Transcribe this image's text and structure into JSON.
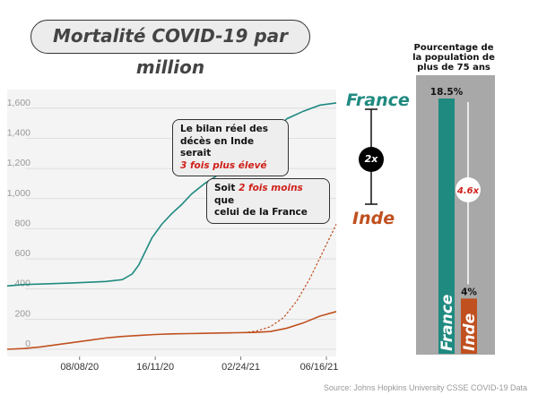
{
  "title": "Mortalité COVID-19 par million",
  "source": "Source: Johns Hopkins University CSSE COVID-19 Data",
  "colors": {
    "france": "#1f8a80",
    "inde": "#c0501f",
    "red_text": "#d0201b"
  },
  "chart_data": [
    {
      "type": "line",
      "ylim": [
        0,
        1700
      ],
      "yticks": [
        0,
        200,
        400,
        600,
        800,
        1000,
        1200,
        1400,
        1600
      ],
      "ytick_labels": [
        "0",
        "200",
        "400",
        "600",
        "800",
        "1,000",
        "1,200",
        "1,400",
        "1,600"
      ],
      "xticks": [
        {
          "label": "08/08/20",
          "x": 0.22
        },
        {
          "label": "16/11/20",
          "x": 0.45
        },
        {
          "label": "02/24/21",
          "x": 0.71
        },
        {
          "label": "06/16/21",
          "x": 0.97
        }
      ],
      "series": [
        {
          "name": "France",
          "points": [
            [
              0.0,
              420
            ],
            [
              0.05,
              430
            ],
            [
              0.1,
              433
            ],
            [
              0.2,
              440
            ],
            [
              0.3,
              450
            ],
            [
              0.35,
              462
            ],
            [
              0.38,
              500
            ],
            [
              0.4,
              560
            ],
            [
              0.42,
              650
            ],
            [
              0.44,
              740
            ],
            [
              0.47,
              830
            ],
            [
              0.5,
              900
            ],
            [
              0.53,
              960
            ],
            [
              0.56,
              1030
            ],
            [
              0.6,
              1100
            ],
            [
              0.65,
              1170
            ],
            [
              0.7,
              1240
            ],
            [
              0.75,
              1310
            ],
            [
              0.8,
              1420
            ],
            [
              0.85,
              1530
            ],
            [
              0.9,
              1580
            ],
            [
              0.95,
              1620
            ],
            [
              1.0,
              1635
            ]
          ]
        },
        {
          "name": "Inde",
          "points": [
            [
              0.0,
              0
            ],
            [
              0.05,
              5
            ],
            [
              0.1,
              15
            ],
            [
              0.15,
              30
            ],
            [
              0.2,
              45
            ],
            [
              0.25,
              60
            ],
            [
              0.3,
              75
            ],
            [
              0.35,
              85
            ],
            [
              0.4,
              92
            ],
            [
              0.45,
              98
            ],
            [
              0.5,
              102
            ],
            [
              0.55,
              104
            ],
            [
              0.6,
              106
            ],
            [
              0.65,
              108
            ],
            [
              0.7,
              110
            ],
            [
              0.75,
              112
            ],
            [
              0.8,
              118
            ],
            [
              0.85,
              140
            ],
            [
              0.9,
              175
            ],
            [
              0.95,
              220
            ],
            [
              1.0,
              250
            ]
          ]
        },
        {
          "name": "Inde ×3",
          "style": "dashed",
          "points": [
            [
              0.72,
              110
            ],
            [
              0.76,
              122
            ],
            [
              0.8,
              150
            ],
            [
              0.84,
              210
            ],
            [
              0.88,
              320
            ],
            [
              0.92,
              470
            ],
            [
              0.96,
              650
            ],
            [
              1.0,
              830
            ]
          ]
        }
      ],
      "series_labels": {
        "france": "France",
        "inde": "Inde"
      },
      "ratio_label": "2x"
    },
    {
      "type": "bar",
      "title_lines": [
        "Pourcentage de",
        "la population de",
        "plus de 75 ans"
      ],
      "ylim": [
        0,
        20
      ],
      "series": [
        {
          "name": "France",
          "value": 18.5,
          "label": "18.5%"
        },
        {
          "name": "Inde",
          "value": 4,
          "label": "4%"
        }
      ],
      "ratio_label": "4.6x"
    }
  ],
  "annotation_1": {
    "line1": "Le bilan réel des",
    "line2": "décès en Inde serait",
    "line3": "3 fois plus élevé"
  },
  "annotation_2": {
    "pre": "Soit ",
    "red": "2 fois moins",
    "post": " que",
    "line2": "celui de la France"
  }
}
